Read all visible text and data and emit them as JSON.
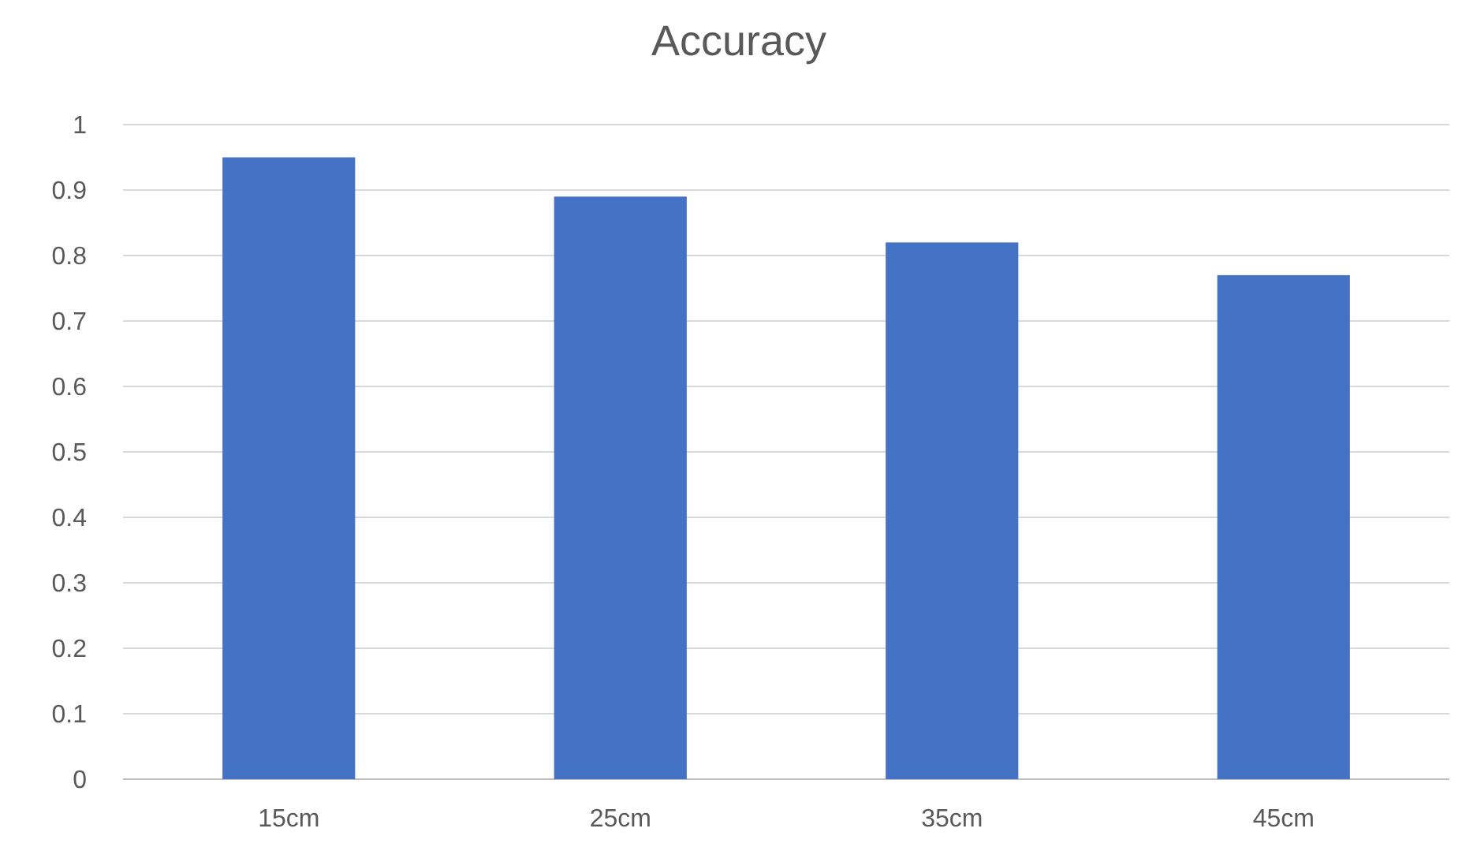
{
  "chart_data": {
    "type": "bar",
    "title": "Accuracy",
    "categories": [
      "15cm",
      "25cm",
      "35cm",
      "45cm"
    ],
    "values": [
      0.95,
      0.89,
      0.82,
      0.77
    ],
    "color": "#4472c4",
    "ylim": [
      0,
      1
    ],
    "yticks": [
      0,
      0.1,
      0.2,
      0.3,
      0.4,
      0.5,
      0.6,
      0.7,
      0.8,
      0.9,
      1
    ],
    "grid": "y"
  }
}
